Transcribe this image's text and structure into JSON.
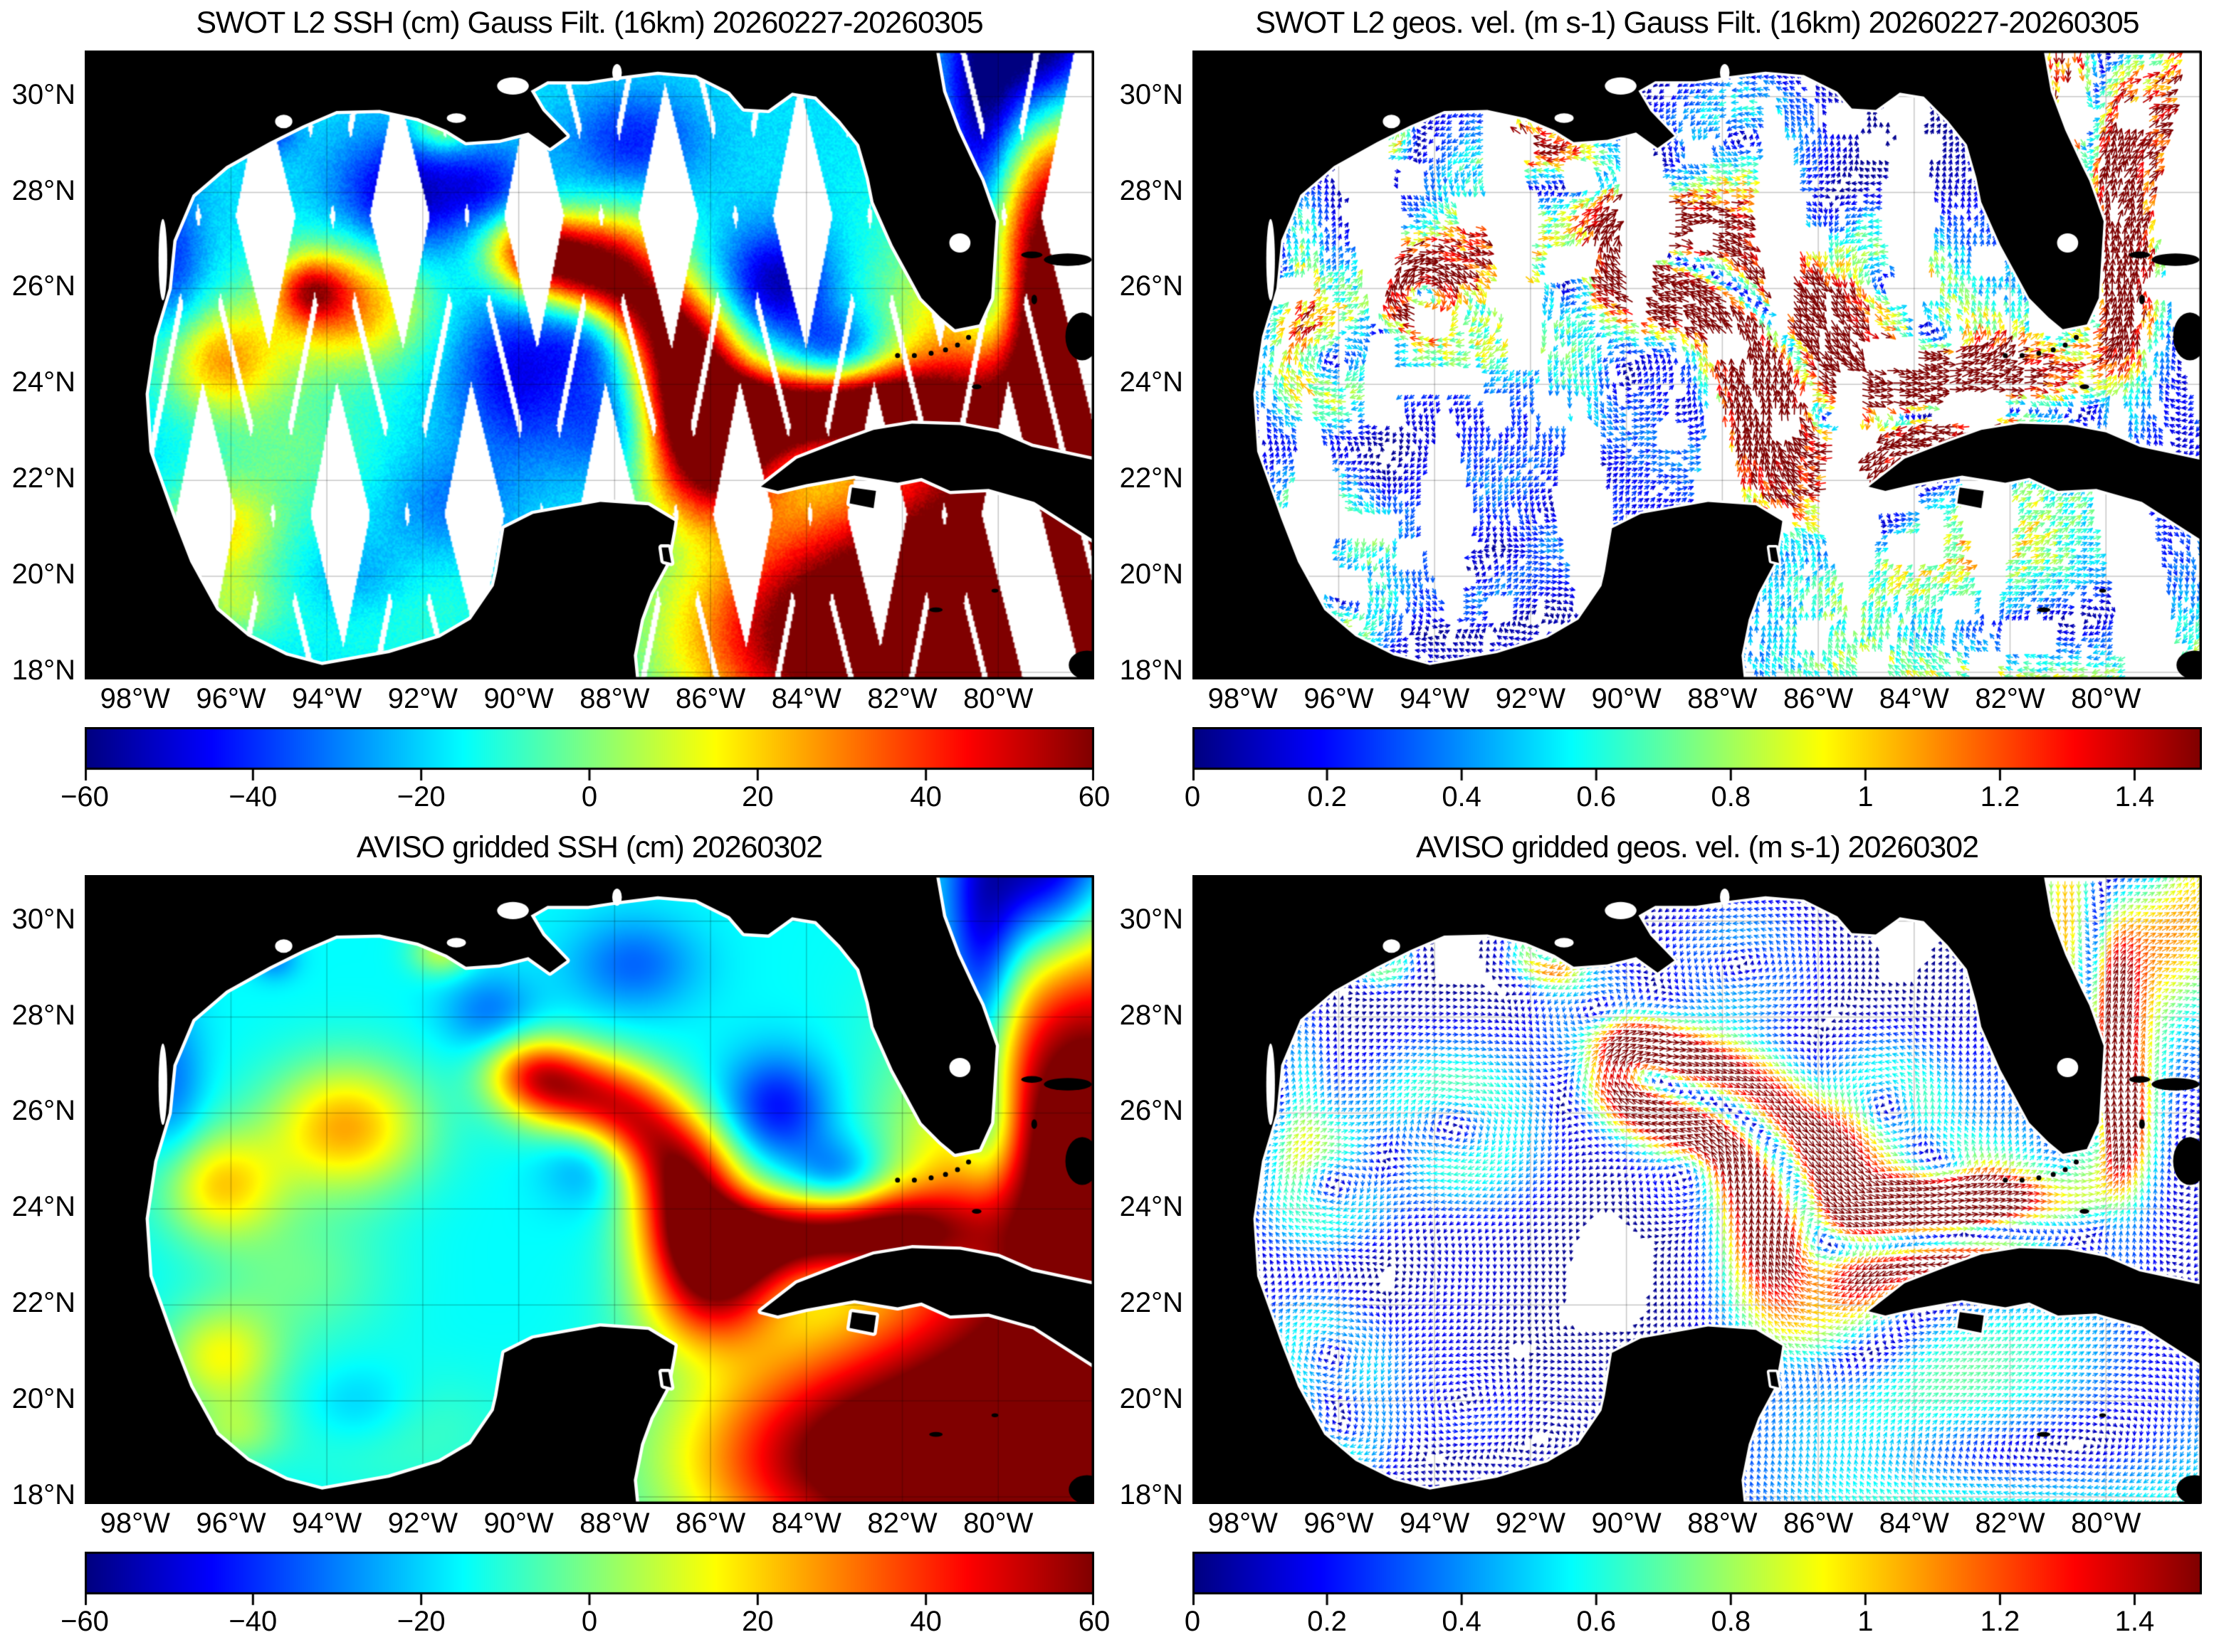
{
  "figure": {
    "background": "#ffffff",
    "font_color": "#000000"
  },
  "chart_data": [
    {
      "id": "swot-ssh",
      "type": "heatmap",
      "render": "ssh_swaths",
      "source": "swot",
      "title": "SWOT L2 SSH (cm) Gauss Filt. (16km) 20260227-20260305",
      "colorbar": {
        "min": -60,
        "max": 60,
        "colormap": "jet",
        "tick_values": [
          -60,
          -40,
          -20,
          0,
          20,
          40,
          60
        ],
        "tick_labels": [
          "−60",
          "−40",
          "−20",
          "0",
          "20",
          "40",
          "60"
        ]
      }
    },
    {
      "id": "swot-vel",
      "type": "heatmap",
      "render": "quiver_swaths",
      "source": "swot",
      "title": "SWOT L2 geos. vel. (m s-1) Gauss Filt. (16km) 20260227-20260305",
      "colorbar": {
        "min": 0,
        "max": 1.5,
        "colormap": "jet",
        "tick_values": [
          0,
          0.2,
          0.4,
          0.6,
          0.8,
          1,
          1.2,
          1.4
        ],
        "tick_labels": [
          "0",
          "0.2",
          "0.4",
          "0.6",
          "0.8",
          "1",
          "1.2",
          "1.4"
        ]
      }
    },
    {
      "id": "aviso-ssh",
      "type": "heatmap",
      "render": "ssh_full",
      "source": "aviso",
      "title": "AVISO gridded SSH (cm) 20260302",
      "colorbar": {
        "min": -60,
        "max": 60,
        "colormap": "jet",
        "tick_values": [
          -60,
          -40,
          -20,
          0,
          20,
          40,
          60
        ],
        "tick_labels": [
          "−60",
          "−40",
          "−20",
          "0",
          "20",
          "40",
          "60"
        ]
      }
    },
    {
      "id": "aviso-vel",
      "type": "heatmap",
      "render": "quiver_full",
      "source": "aviso",
      "title": "AVISO gridded geos. vel. (m s-1)  20260302",
      "colorbar": {
        "min": 0,
        "max": 1.5,
        "colormap": "jet",
        "tick_values": [
          0,
          0.2,
          0.4,
          0.6,
          0.8,
          1,
          1.2,
          1.4
        ],
        "tick_labels": [
          "0",
          "0.2",
          "0.4",
          "0.6",
          "0.8",
          "1",
          "1.2",
          "1.4"
        ]
      }
    }
  ],
  "map_data": {
    "axes": {
      "lon_min": -99.05,
      "lon_max": -78.0,
      "lat_min": 17.85,
      "lat_max": 30.96,
      "xticks": [
        {
          "value": -98,
          "label": "98°W"
        },
        {
          "value": -96,
          "label": "96°W"
        },
        {
          "value": -94,
          "label": "94°W"
        },
        {
          "value": -92,
          "label": "92°W"
        },
        {
          "value": -90,
          "label": "90°W"
        },
        {
          "value": -88,
          "label": "88°W"
        },
        {
          "value": -86,
          "label": "86°W"
        },
        {
          "value": -84,
          "label": "84°W"
        },
        {
          "value": -82,
          "label": "82°W"
        },
        {
          "value": -80,
          "label": "80°W"
        }
      ],
      "yticks": [
        {
          "value": 18,
          "label": "18°N"
        },
        {
          "value": 20,
          "label": "20°N"
        },
        {
          "value": 22,
          "label": "22°N"
        },
        {
          "value": 24,
          "label": "24°N"
        },
        {
          "value": 26,
          "label": "26°N"
        },
        {
          "value": 28,
          "label": "28°N"
        },
        {
          "value": 30,
          "label": "30°N"
        }
      ],
      "grid": true
    },
    "ssh_field": {
      "base_cm": -15,
      "swot_gain": 1.25,
      "blobs": [
        [
          -78.5,
          20.5,
          58,
          3.2,
          2.6
        ],
        [
          -80.5,
          18.4,
          50,
          2.6,
          2.0
        ],
        [
          -84.0,
          18.8,
          46,
          2.2,
          1.6
        ],
        [
          -78.3,
          24.8,
          55,
          2.2,
          2.2
        ],
        [
          -78.2,
          28.1,
          52,
          1.6,
          2.6
        ],
        [
          -79.0,
          31.1,
          -60,
          1.1,
          1.5
        ],
        [
          -86.0,
          22.2,
          50,
          1.0,
          0.85
        ],
        [
          -86.35,
          23.6,
          52,
          0.85,
          0.8
        ],
        [
          -86.6,
          24.8,
          52,
          0.8,
          0.75
        ],
        [
          -87.6,
          25.7,
          50,
          0.85,
          0.7
        ],
        [
          -88.7,
          26.4,
          50,
          0.95,
          0.65
        ],
        [
          -89.7,
          26.85,
          40,
          0.7,
          0.55
        ],
        [
          -85.3,
          23.3,
          46,
          0.9,
          0.7
        ],
        [
          -83.8,
          23.45,
          44,
          1.0,
          0.6
        ],
        [
          -82.2,
          23.6,
          46,
          1.15,
          0.6
        ],
        [
          -88.35,
          25.2,
          -26,
          0.75,
          0.7
        ],
        [
          -84.6,
          26.1,
          -30,
          0.8,
          0.8
        ],
        [
          -83.3,
          24.6,
          -26,
          0.7,
          0.6
        ],
        [
          -90.6,
          28.1,
          -16,
          0.7,
          0.6
        ],
        [
          -87.6,
          29.1,
          -18,
          0.95,
          0.7
        ],
        [
          -97.25,
          26.6,
          -16,
          0.5,
          1.2
        ],
        [
          -95.1,
          29.2,
          -14,
          0.35,
          0.3
        ],
        [
          -93.3,
          19.9,
          -10,
          0.8,
          0.6
        ],
        [
          -93.6,
          25.7,
          40,
          1.15,
          0.95
        ],
        [
          -96.2,
          24.5,
          34,
          0.9,
          0.8
        ],
        [
          -96.2,
          20.9,
          28,
          0.85,
          0.75
        ],
        [
          -94.6,
          22.6,
          12,
          1.3,
          1.0
        ],
        [
          -91.6,
          29.35,
          22,
          0.45,
          0.35
        ],
        [
          -92.6,
          19.4,
          8,
          1.6,
          0.9
        ],
        [
          -95.9,
          19.35,
          16,
          0.7,
          0.5
        ],
        [
          -80.35,
          28.6,
          -38,
          0.55,
          2.2
        ],
        [
          -80.1,
          25.6,
          -25,
          0.45,
          0.9
        ]
      ],
      "swot_extra_blobs": [
        [
          -92.4,
          27.9,
          -28,
          1.0,
          0.9
        ],
        [
          -94.35,
          25.95,
          30,
          0.5,
          0.45
        ],
        [
          -90.1,
          24.2,
          -22,
          0.9,
          1.2
        ],
        [
          -88.0,
          23.2,
          -18,
          0.8,
          0.9
        ],
        [
          -91.5,
          21.5,
          -10,
          1.0,
          0.8
        ],
        [
          -87.8,
          27.1,
          15,
          0.9,
          0.6
        ]
      ]
    },
    "swaths": {
      "width_deg": 1.55,
      "gap_deg": 0.12,
      "ref_lat": 24.4,
      "tracks": [
        {
          "x0": -97.3,
          "slope": 0.2
        },
        {
          "x0": -94.5,
          "slope": 0.2
        },
        {
          "x0": -91.7,
          "slope": 0.2
        },
        {
          "x0": -88.9,
          "slope": 0.2
        },
        {
          "x0": -86.1,
          "slope": 0.2
        },
        {
          "x0": -83.3,
          "slope": 0.2
        },
        {
          "x0": -80.5,
          "slope": 0.2
        },
        {
          "x0": -95.9,
          "slope": -0.25
        },
        {
          "x0": -93.1,
          "slope": -0.25
        },
        {
          "x0": -90.3,
          "slope": -0.25
        },
        {
          "x0": -87.5,
          "slope": -0.25
        },
        {
          "x0": -84.7,
          "slope": -0.25
        },
        {
          "x0": -81.9,
          "slope": -0.25
        },
        {
          "x0": -79.1,
          "slope": -0.25
        }
      ]
    },
    "velocity": {
      "cm_per_deg_to_ms": 0.026,
      "max_ms": 1.5,
      "grid_spacing_swot_deg": 0.13,
      "grid_spacing_aviso_deg": 0.145
    },
    "coast": {
      "mainland": [
        [
          -99.05,
          30.96
        ],
        [
          -99.05,
          17.85
        ],
        [
          -87.55,
          17.85
        ],
        [
          -87.6,
          18.35
        ],
        [
          -87.45,
          19.1
        ],
        [
          -87.25,
          19.65
        ],
        [
          -86.9,
          20.3
        ],
        [
          -86.78,
          20.95
        ],
        [
          -86.75,
          21.15
        ],
        [
          -87.3,
          21.48
        ],
        [
          -88.3,
          21.55
        ],
        [
          -89.7,
          21.3
        ],
        [
          -90.3,
          21.0
        ],
        [
          -90.45,
          20.1
        ],
        [
          -90.52,
          19.8
        ],
        [
          -91.0,
          19.1
        ],
        [
          -91.65,
          18.72
        ],
        [
          -92.7,
          18.4
        ],
        [
          -94.1,
          18.15
        ],
        [
          -94.85,
          18.35
        ],
        [
          -95.65,
          18.75
        ],
        [
          -96.3,
          19.3
        ],
        [
          -96.85,
          20.3
        ],
        [
          -97.2,
          21.2
        ],
        [
          -97.7,
          22.6
        ],
        [
          -97.78,
          23.8
        ],
        [
          -97.6,
          25.0
        ],
        [
          -97.3,
          26.0
        ],
        [
          -97.2,
          27.0
        ],
        [
          -96.8,
          27.95
        ],
        [
          -96.1,
          28.55
        ],
        [
          -95.2,
          29.05
        ],
        [
          -94.5,
          29.4
        ],
        [
          -93.8,
          29.7
        ],
        [
          -92.9,
          29.72
        ],
        [
          -92.1,
          29.55
        ],
        [
          -91.5,
          29.3
        ],
        [
          -91.1,
          29.05
        ],
        [
          -90.4,
          29.1
        ],
        [
          -89.8,
          29.25
        ],
        [
          -89.35,
          28.93
        ],
        [
          -89.0,
          29.18
        ],
        [
          -89.5,
          29.7
        ],
        [
          -89.75,
          30.12
        ],
        [
          -89.4,
          30.32
        ],
        [
          -88.55,
          30.32
        ],
        [
          -87.9,
          30.42
        ],
        [
          -87.1,
          30.52
        ],
        [
          -86.3,
          30.45
        ],
        [
          -85.6,
          30.1
        ],
        [
          -85.3,
          29.75
        ],
        [
          -84.8,
          29.72
        ],
        [
          -84.3,
          30.08
        ],
        [
          -83.8,
          30.0
        ],
        [
          -83.3,
          29.5
        ],
        [
          -82.9,
          29.0
        ],
        [
          -82.7,
          28.3
        ],
        [
          -82.6,
          27.8
        ],
        [
          -82.2,
          26.9
        ],
        [
          -81.9,
          26.35
        ],
        [
          -81.6,
          25.8
        ],
        [
          -81.2,
          25.4
        ],
        [
          -80.9,
          25.15
        ],
        [
          -80.4,
          25.25
        ],
        [
          -80.15,
          25.8
        ],
        [
          -80.1,
          26.6
        ],
        [
          -80.05,
          27.4
        ],
        [
          -80.35,
          28.25
        ],
        [
          -80.5,
          28.55
        ],
        [
          -80.85,
          29.3
        ],
        [
          -81.15,
          30.1
        ],
        [
          -81.3,
          30.96
        ]
      ],
      "cuba": [
        [
          -84.95,
          21.87
        ],
        [
          -84.2,
          22.45
        ],
        [
          -83.3,
          22.8
        ],
        [
          -82.6,
          23.05
        ],
        [
          -81.8,
          23.18
        ],
        [
          -80.8,
          23.15
        ],
        [
          -80.0,
          23.0
        ],
        [
          -79.3,
          22.7
        ],
        [
          -78.0,
          22.42
        ],
        [
          -78.0,
          20.75
        ],
        [
          -79.25,
          21.55
        ],
        [
          -80.2,
          21.82
        ],
        [
          -81.0,
          21.78
        ],
        [
          -81.6,
          22.05
        ],
        [
          -82.1,
          21.95
        ],
        [
          -83.0,
          22.1
        ],
        [
          -84.0,
          21.92
        ],
        [
          -84.6,
          21.78
        ]
      ],
      "isla_juventud": [
        [
          -83.05,
          21.85
        ],
        [
          -82.55,
          21.78
        ],
        [
          -82.6,
          21.42
        ],
        [
          -83.1,
          21.52
        ]
      ],
      "cozumel": [
        [
          -87.02,
          20.6
        ],
        [
          -86.88,
          20.6
        ],
        [
          -86.82,
          20.28
        ],
        [
          -86.98,
          20.32
        ]
      ],
      "island_ellipses": [
        [
          -79.3,
          26.7,
          0.22,
          0.07
        ],
        [
          -78.55,
          26.6,
          0.5,
          0.13
        ],
        [
          -78.25,
          25.0,
          0.35,
          0.5
        ],
        [
          -79.25,
          25.77,
          0.06,
          0.1
        ],
        [
          -80.45,
          23.95,
          0.1,
          0.05
        ],
        [
          -81.3,
          19.3,
          0.14,
          0.05
        ],
        [
          -80.07,
          19.7,
          0.07,
          0.04
        ],
        [
          -78.15,
          18.15,
          0.38,
          0.3
        ]
      ],
      "florida_keys_dots": [
        [
          -80.62,
          24.98
        ],
        [
          -80.85,
          24.82
        ],
        [
          -81.1,
          24.72
        ],
        [
          -81.4,
          24.65
        ],
        [
          -81.75,
          24.6
        ],
        [
          -82.1,
          24.6
        ]
      ],
      "water_bodies": [
        [
          -90.12,
          30.22,
          0.33,
          0.18
        ],
        [
          -80.8,
          26.95,
          0.22,
          0.2
        ],
        [
          -94.9,
          29.48,
          0.18,
          0.14
        ],
        [
          -87.95,
          30.5,
          0.1,
          0.18
        ],
        [
          -97.42,
          26.6,
          0.09,
          0.85
        ],
        [
          -91.3,
          29.55,
          0.2,
          0.1
        ]
      ]
    }
  }
}
